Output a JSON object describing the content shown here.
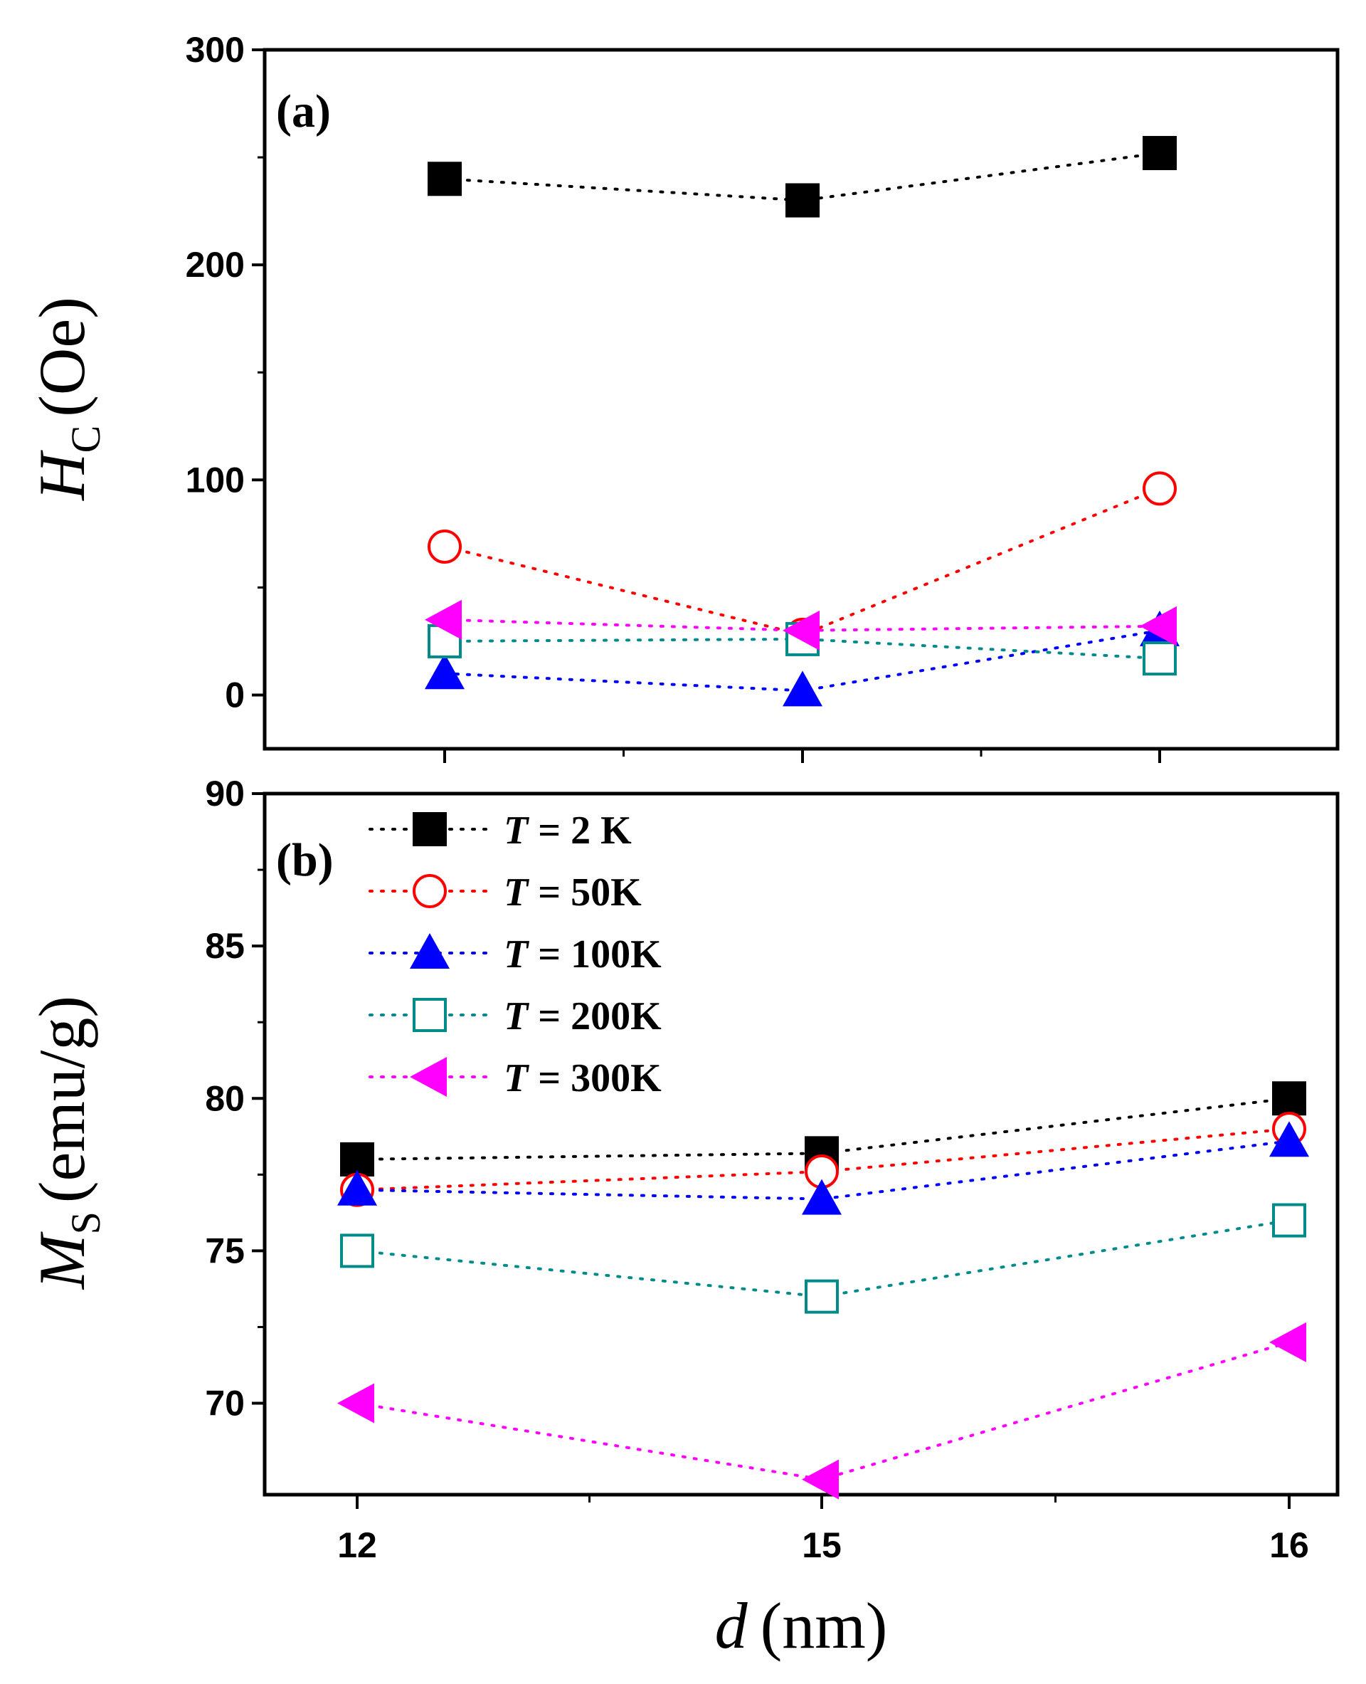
{
  "chart_data": [
    {
      "type": "scatter",
      "panel_label": "(a)",
      "ylabel_symbol": "H",
      "ylabel_subscript": "C",
      "ylabel_unit": "(Oe)",
      "ylim": [
        -25,
        300
      ],
      "yticks": [
        0,
        100,
        200,
        300
      ],
      "categories": [
        "12",
        "15",
        "16"
      ],
      "series": [
        {
          "name": "T = 2 K",
          "marker": "square-filled",
          "color": "#000000",
          "values": [
            240,
            230,
            252
          ]
        },
        {
          "name": "T = 50K",
          "marker": "circle-open",
          "color": "#ff0000",
          "values": [
            69,
            28,
            96
          ]
        },
        {
          "name": "T = 100K",
          "marker": "triangle-up-filled",
          "color": "#0000ff",
          "values": [
            10,
            2,
            30
          ]
        },
        {
          "name": "T = 200K",
          "marker": "square-open",
          "color": "#008b8b",
          "values": [
            25,
            26,
            17
          ]
        },
        {
          "name": "T = 300K",
          "marker": "triangle-left-filled",
          "color": "#ff00ff",
          "values": [
            35,
            30,
            32
          ]
        }
      ]
    },
    {
      "type": "scatter",
      "panel_label": "(b)",
      "ylabel_symbol": "M",
      "ylabel_subscript": "S",
      "ylabel_unit": "(emu/g)",
      "ylim": [
        67,
        90
      ],
      "yticks": [
        70,
        75,
        80,
        85,
        90
      ],
      "categories": [
        "12",
        "15",
        "16"
      ],
      "xlabel_symbol": "d",
      "xlabel_unit": "(nm)",
      "series": [
        {
          "name": "T = 2 K",
          "marker": "square-filled",
          "color": "#000000",
          "values": [
            78,
            78.2,
            80
          ]
        },
        {
          "name": "T = 50K",
          "marker": "circle-open",
          "color": "#ff0000",
          "values": [
            77,
            77.6,
            79
          ]
        },
        {
          "name": "T = 100K",
          "marker": "triangle-up-filled",
          "color": "#0000ff",
          "values": [
            77,
            76.7,
            78.6
          ]
        },
        {
          "name": "T = 200K",
          "marker": "square-open",
          "color": "#008b8b",
          "values": [
            75,
            73.5,
            76
          ]
        },
        {
          "name": "T = 300K",
          "marker": "triangle-left-filled",
          "color": "#ff00ff",
          "values": [
            70,
            67.5,
            72
          ]
        }
      ],
      "legend": {
        "placement": "top-left",
        "entries": [
          {
            "italic": "T",
            "rest": " = 2 K"
          },
          {
            "italic": "T",
            "rest": " = 50K"
          },
          {
            "italic": "T",
            "rest": " = 100K"
          },
          {
            "italic": "T",
            "rest": " = 200K"
          },
          {
            "italic": "T",
            "rest": " = 300K"
          }
        ]
      }
    }
  ]
}
